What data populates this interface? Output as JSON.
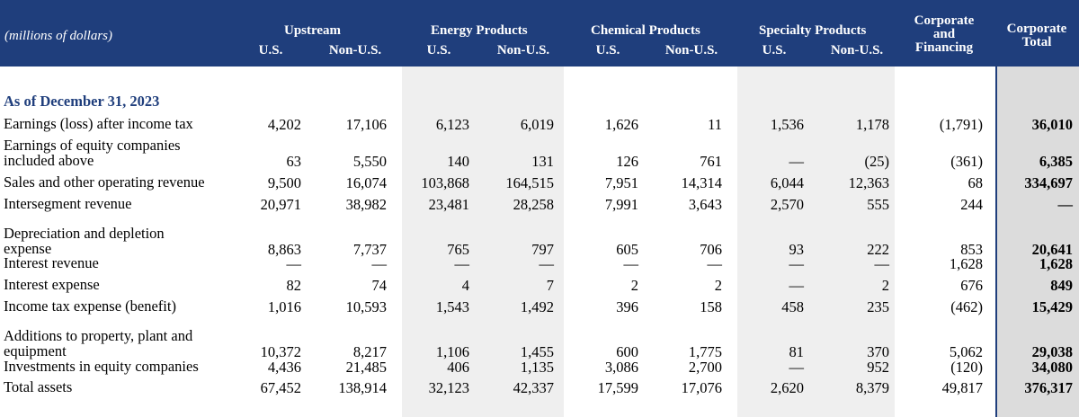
{
  "header": {
    "unit_label": "(millions of dollars)",
    "groups": {
      "upstream": "Upstream",
      "energy": "Energy Products",
      "chemical": "Chemical Products",
      "specialty": "Specialty Products",
      "corporate_financing": [
        "Corporate",
        "and",
        "Financing"
      ],
      "corporate_total": [
        "Corporate",
        "Total"
      ]
    },
    "sub_us": "U.S.",
    "sub_non_us": "Non-U.S."
  },
  "section_title": "As of December 31, 2023",
  "rows": [
    {
      "label": [
        "Earnings (loss) after income tax"
      ],
      "values": [
        "4,202",
        "17,106",
        "6,123",
        "6,019",
        "1,626",
        "11",
        "1,536",
        "1,178",
        "(1,791)",
        "36,010"
      ]
    },
    {
      "label": [
        "Earnings of equity companies",
        "included above"
      ],
      "values": [
        "63",
        "5,550",
        "140",
        "131",
        "126",
        "761",
        "—",
        "(25)",
        "(361)",
        "6,385"
      ]
    },
    {
      "label": [
        "Sales and other operating revenue"
      ],
      "values": [
        "9,500",
        "16,074",
        "103,868",
        "164,515",
        "7,951",
        "14,314",
        "6,044",
        "12,363",
        "68",
        "334,697"
      ]
    },
    {
      "label": [
        "Intersegment revenue"
      ],
      "values": [
        "20,971",
        "38,982",
        "23,481",
        "28,258",
        "7,991",
        "3,643",
        "2,570",
        "555",
        "244",
        "—"
      ]
    },
    {
      "label": [
        "Depreciation and depletion",
        "expense"
      ],
      "values": [
        "8,863",
        "7,737",
        "765",
        "797",
        "605",
        "706",
        "93",
        "222",
        "853",
        "20,641"
      ]
    },
    {
      "label": [
        "Interest revenue"
      ],
      "values": [
        "—",
        "—",
        "—",
        "—",
        "—",
        "—",
        "—",
        "—",
        "1,628",
        "1,628"
      ]
    },
    {
      "label": [
        "Interest expense"
      ],
      "values": [
        "82",
        "74",
        "4",
        "7",
        "2",
        "2",
        "—",
        "2",
        "676",
        "849"
      ]
    },
    {
      "label": [
        "Income tax expense (benefit)"
      ],
      "values": [
        "1,016",
        "10,593",
        "1,543",
        "1,492",
        "396",
        "158",
        "458",
        "235",
        "(462)",
        "15,429"
      ]
    },
    {
      "label": [
        "Additions to property, plant and",
        "equipment"
      ],
      "values": [
        "10,372",
        "8,217",
        "1,106",
        "1,455",
        "600",
        "1,775",
        "81",
        "370",
        "5,062",
        "29,038"
      ]
    },
    {
      "label": [
        "Investments in equity companies"
      ],
      "values": [
        "4,436",
        "21,485",
        "406",
        "1,135",
        "3,086",
        "2,700",
        "—",
        "952",
        "(120)",
        "34,080"
      ]
    },
    {
      "label": [
        "Total assets"
      ],
      "values": [
        "67,452",
        "138,914",
        "32,123",
        "42,337",
        "17,599",
        "17,076",
        "2,620",
        "8,379",
        "49,817",
        "376,317"
      ]
    }
  ]
}
